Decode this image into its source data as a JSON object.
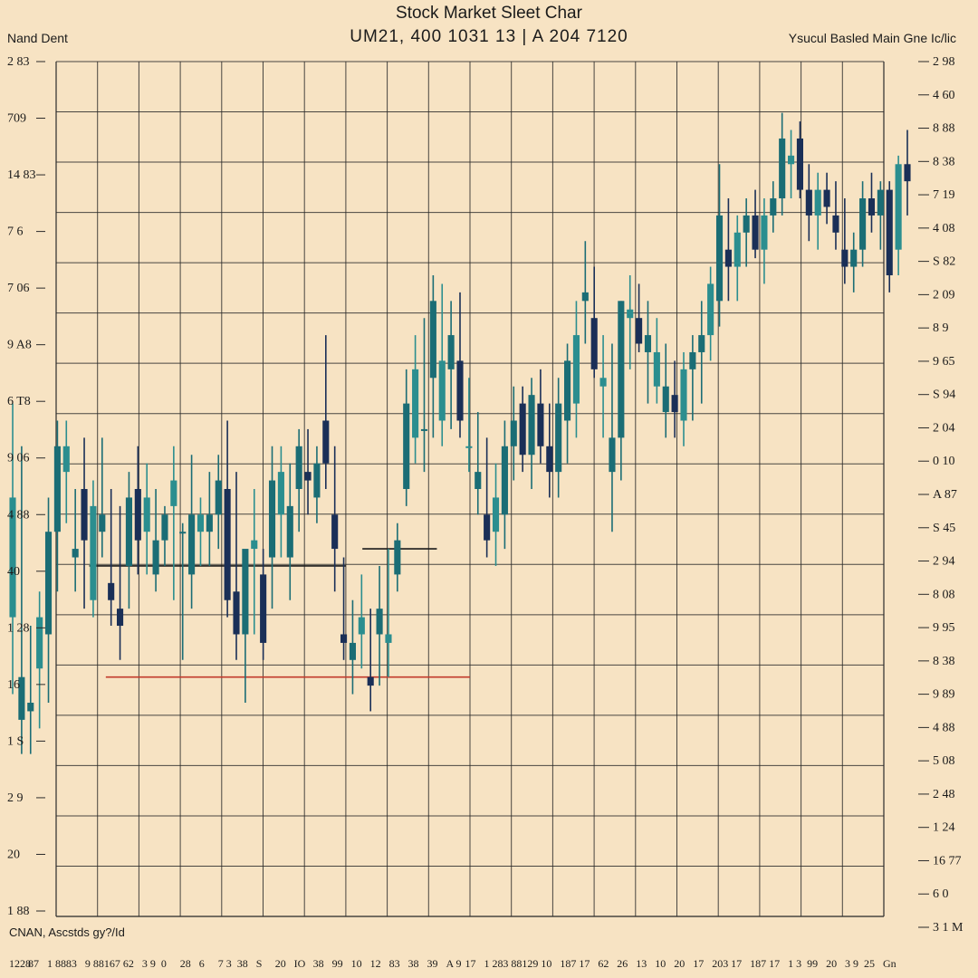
{
  "chart_data": {
    "type": "candlestick",
    "title": "Stock Market Sleet Char",
    "subtitle": "UM21, 400 1031 13   | A 204 7120",
    "left_label": "Nand Dent",
    "right_label": "Ysucul Basled Main Gne Ic/lic",
    "footer_note": "CNAN, Ascstds gy?/Id",
    "grid": true,
    "ylim": [
      0,
      1
    ],
    "colors": {
      "background": "#f7e3c3",
      "grid": "#2a2a2a",
      "candle_dark": "#1a2f57",
      "candle_teal": "#1b6d75",
      "candle_teal_light": "#2b8e8f",
      "baseline_red": "#c23a2b"
    },
    "left_axis_ticks": [
      "2 83",
      "709",
      "14 83",
      "7 6 ",
      "7 06",
      "9 A8",
      "6 T8",
      "9 06",
      "4 88",
      "40 ",
      "1 28",
      "16 ",
      "1 S",
      "2 9",
      "20 ",
      "1 88"
    ],
    "right_axis_ticks": [
      "2 98",
      "4 60",
      "8 88",
      "8 38",
      "7 19",
      "4 08",
      "S 82",
      "2 09",
      "8 9",
      "9 65",
      "S 94",
      "2 04",
      "0 10",
      "A 87",
      "S 45",
      "2 94",
      "8 08",
      "9 95",
      "8 38",
      "9 89",
      "4 88",
      "5 08",
      "2 48",
      "1 24",
      "16 77",
      "6 0",
      "3 1 M"
    ],
    "x_ticks": [
      "1228",
      "87",
      "1 88",
      "83",
      "9 88",
      "167",
      "62",
      "3 9",
      "0",
      "28",
      "6",
      "7 3",
      "38",
      "S",
      "20",
      "IO",
      "38",
      "99",
      "10",
      "12",
      "83",
      "38",
      "39",
      "A 9",
      "17",
      "1 28",
      "3 88",
      "129",
      "10",
      "187",
      "17",
      "62",
      "26",
      "13",
      "10",
      "20",
      "17",
      "203",
      "17",
      "187",
      "17",
      "1 3",
      "99",
      "20",
      "3 9",
      "25",
      "Gn"
    ],
    "series": [
      {
        "values": [
          [
            0.35,
            0.6,
            0.26,
            0.49
          ],
          [
            0.23,
            0.55,
            0.19,
            0.28
          ],
          [
            0.24,
            0.34,
            0.19,
            0.25
          ],
          [
            0.29,
            0.38,
            0.22,
            0.35
          ],
          [
            0.33,
            0.49,
            0.25,
            0.45
          ],
          [
            0.45,
            0.58,
            0.38,
            0.55
          ],
          [
            0.52,
            0.58,
            0.46,
            0.55
          ],
          [
            0.42,
            0.5,
            0.38,
            0.43
          ],
          [
            0.5,
            0.56,
            0.36,
            0.44
          ],
          [
            0.37,
            0.51,
            0.35,
            0.48
          ],
          [
            0.45,
            0.56,
            0.42,
            0.47
          ],
          [
            0.39,
            0.5,
            0.34,
            0.37
          ],
          [
            0.36,
            0.48,
            0.3,
            0.34
          ],
          [
            0.41,
            0.52,
            0.36,
            0.49
          ],
          [
            0.5,
            0.55,
            0.4,
            0.44
          ],
          [
            0.45,
            0.53,
            0.4,
            0.49
          ],
          [
            0.4,
            0.5,
            0.38,
            0.44
          ],
          [
            0.44,
            0.48,
            0.41,
            0.47
          ],
          [
            0.48,
            0.55,
            0.37,
            0.51
          ],
          [
            0.45,
            0.46,
            0.3,
            0.45
          ],
          [
            0.4,
            0.54,
            0.36,
            0.47
          ],
          [
            0.45,
            0.49,
            0.41,
            0.47
          ],
          [
            0.45,
            0.52,
            0.41,
            0.47
          ],
          [
            0.47,
            0.54,
            0.43,
            0.51
          ],
          [
            0.5,
            0.58,
            0.35,
            0.37
          ],
          [
            0.38,
            0.52,
            0.3,
            0.33
          ],
          [
            0.33,
            0.41,
            0.25,
            0.43
          ],
          [
            0.43,
            0.5,
            0.33,
            0.44
          ],
          [
            0.4,
            0.43,
            0.3,
            0.32
          ],
          [
            0.42,
            0.55,
            0.36,
            0.51
          ],
          [
            0.47,
            0.55,
            0.42,
            0.52
          ],
          [
            0.42,
            0.53,
            0.37,
            0.48
          ],
          [
            0.5,
            0.57,
            0.45,
            0.55
          ],
          [
            0.52,
            0.57,
            0.47,
            0.51
          ],
          [
            0.49,
            0.55,
            0.46,
            0.53
          ],
          [
            0.58,
            0.68,
            0.5,
            0.53
          ],
          [
            0.47,
            0.55,
            0.38,
            0.43
          ],
          [
            0.33,
            0.42,
            0.3,
            0.32
          ],
          [
            0.3,
            0.37,
            0.26,
            0.32
          ],
          [
            0.33,
            0.4,
            0.29,
            0.35
          ],
          [
            0.28,
            0.36,
            0.24,
            0.27
          ],
          [
            0.33,
            0.41,
            0.27,
            0.36
          ],
          [
            0.32,
            0.43,
            0.28,
            0.33
          ],
          [
            0.4,
            0.46,
            0.38,
            0.44
          ],
          [
            0.5,
            0.64,
            0.48,
            0.6
          ],
          [
            0.56,
            0.68,
            0.53,
            0.64
          ],
          [
            0.57,
            0.7,
            0.52,
            0.57
          ],
          [
            0.63,
            0.75,
            0.56,
            0.72
          ],
          [
            0.58,
            0.74,
            0.55,
            0.65
          ],
          [
            0.64,
            0.72,
            0.57,
            0.68
          ],
          [
            0.65,
            0.73,
            0.56,
            0.58
          ],
          [
            0.55,
            0.63,
            0.52,
            0.55
          ],
          [
            0.5,
            0.59,
            0.47,
            0.52
          ],
          [
            0.47,
            0.56,
            0.42,
            0.44
          ],
          [
            0.45,
            0.53,
            0.41,
            0.49
          ],
          [
            0.47,
            0.58,
            0.43,
            0.55
          ],
          [
            0.55,
            0.62,
            0.51,
            0.58
          ],
          [
            0.6,
            0.62,
            0.52,
            0.54
          ],
          [
            0.54,
            0.63,
            0.5,
            0.61
          ],
          [
            0.6,
            0.64,
            0.53,
            0.55
          ],
          [
            0.55,
            0.6,
            0.49,
            0.52
          ],
          [
            0.52,
            0.63,
            0.49,
            0.6
          ],
          [
            0.58,
            0.67,
            0.53,
            0.65
          ],
          [
            0.6,
            0.72,
            0.56,
            0.68
          ],
          [
            0.72,
            0.79,
            0.67,
            0.73
          ],
          [
            0.7,
            0.76,
            0.63,
            0.64
          ],
          [
            0.62,
            0.68,
            0.56,
            0.63
          ],
          [
            0.52,
            0.67,
            0.45,
            0.56
          ],
          [
            0.56,
            0.72,
            0.51,
            0.72
          ],
          [
            0.7,
            0.75,
            0.64,
            0.71
          ],
          [
            0.7,
            0.74,
            0.66,
            0.67
          ],
          [
            0.66,
            0.72,
            0.6,
            0.68
          ],
          [
            0.62,
            0.7,
            0.6,
            0.66
          ],
          [
            0.59,
            0.67,
            0.56,
            0.62
          ],
          [
            0.61,
            0.65,
            0.56,
            0.59
          ],
          [
            0.58,
            0.66,
            0.55,
            0.64
          ],
          [
            0.64,
            0.68,
            0.58,
            0.66
          ],
          [
            0.66,
            0.72,
            0.6,
            0.68
          ],
          [
            0.68,
            0.76,
            0.65,
            0.74
          ],
          [
            0.72,
            0.88,
            0.69,
            0.82
          ],
          [
            0.78,
            0.84,
            0.72,
            0.76
          ],
          [
            0.76,
            0.82,
            0.72,
            0.8
          ],
          [
            0.8,
            0.84,
            0.76,
            0.82
          ],
          [
            0.82,
            0.85,
            0.77,
            0.78
          ],
          [
            0.78,
            0.84,
            0.74,
            0.82
          ],
          [
            0.82,
            0.86,
            0.8,
            0.84
          ],
          [
            0.84,
            0.94,
            0.82,
            0.91
          ],
          [
            0.88,
            0.92,
            0.84,
            0.89
          ],
          [
            0.91,
            0.93,
            0.84,
            0.85
          ],
          [
            0.85,
            0.88,
            0.79,
            0.82
          ],
          [
            0.82,
            0.87,
            0.78,
            0.85
          ],
          [
            0.85,
            0.87,
            0.81,
            0.83
          ],
          [
            0.82,
            0.86,
            0.78,
            0.8
          ],
          [
            0.78,
            0.84,
            0.74,
            0.76
          ],
          [
            0.76,
            0.8,
            0.73,
            0.78
          ],
          [
            0.78,
            0.86,
            0.76,
            0.84
          ],
          [
            0.84,
            0.87,
            0.8,
            0.82
          ],
          [
            0.82,
            0.86,
            0.78,
            0.85
          ],
          [
            0.85,
            0.86,
            0.73,
            0.75
          ],
          [
            0.78,
            0.89,
            0.75,
            0.88
          ],
          [
            0.88,
            0.92,
            0.82,
            0.86
          ]
        ]
      }
    ],
    "baselines": [
      {
        "color": "#1b1b1b",
        "from": 0.04,
        "to": 0.35,
        "level": 0.41
      },
      {
        "color": "#c23a2b",
        "from": 0.06,
        "to": 0.5,
        "level": 0.28
      },
      {
        "color": "#1b1b1b",
        "from": 0.37,
        "to": 0.46,
        "level": 0.43
      }
    ]
  }
}
